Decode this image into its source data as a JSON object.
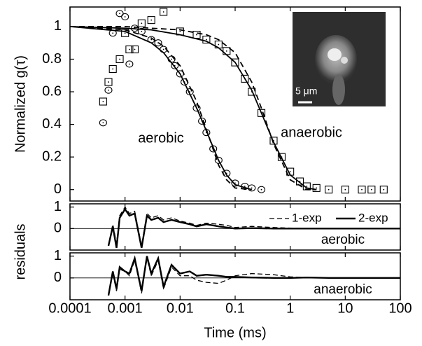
{
  "chart_data": [
    {
      "type": "scatter",
      "ylabel": "Normalized g(τ)",
      "xlog": true,
      "xlim": [
        0.0001,
        100
      ],
      "xticks": [
        0.0001,
        0.001,
        0.01,
        0.1,
        1,
        10,
        100
      ],
      "ylim": [
        -0.07,
        1.12
      ],
      "yticks": [
        0,
        0.2,
        0.4,
        0.6,
        0.8,
        1
      ],
      "inset_scale_label": "5 μm",
      "series": [
        {
          "name": "aerobic",
          "marker": "circle",
          "color": "#000000",
          "x": [
            0.0004,
            0.0005,
            0.0006,
            0.0008,
            0.001,
            0.0012,
            0.0015,
            0.002,
            0.003,
            0.004,
            0.005,
            0.007,
            0.008,
            0.01,
            0.012,
            0.015,
            0.02,
            0.025,
            0.03,
            0.04,
            0.05,
            0.07,
            0.1,
            0.15,
            0.2,
            0.3
          ],
          "values": [
            0.41,
            0.61,
            0.96,
            1.08,
            1.06,
            0.77,
            0.99,
            0.97,
            0.92,
            0.9,
            0.86,
            0.8,
            0.76,
            0.71,
            0.66,
            0.6,
            0.5,
            0.42,
            0.35,
            0.25,
            0.18,
            0.1,
            0.04,
            0.02,
            0.01,
            0
          ]
        },
        {
          "name": "anaerobic",
          "marker": "square",
          "color": "#000000",
          "x": [
            0.0004,
            0.0005,
            0.0006,
            0.0008,
            0.001,
            0.0012,
            0.0015,
            0.002,
            0.003,
            0.005,
            0.01,
            0.02,
            0.03,
            0.05,
            0.07,
            0.1,
            0.15,
            0.2,
            0.3,
            0.5,
            0.7,
            1,
            1.5,
            2,
            3,
            5,
            10,
            20,
            30,
            50
          ],
          "values": [
            0.54,
            0.66,
            0.74,
            0.8,
            0.96,
            0.86,
            0.86,
            1.02,
            1.04,
            1.09,
            0.97,
            0.95,
            0.92,
            0.89,
            0.85,
            0.78,
            0.68,
            0.6,
            0.47,
            0.3,
            0.2,
            0.11,
            0.05,
            0.02,
            0.01,
            0,
            0,
            0,
            0,
            0
          ]
        }
      ],
      "fits": [
        {
          "dash": false,
          "color": "#000000",
          "x": [
            0.0001,
            0.001,
            0.003,
            0.005,
            0.01,
            0.02,
            0.03,
            0.05,
            0.07,
            0.1,
            0.2
          ],
          "values": [
            1,
            0.97,
            0.9,
            0.84,
            0.71,
            0.5,
            0.36,
            0.18,
            0.09,
            0.03,
            0
          ]
        },
        {
          "dash": true,
          "color": "#000000",
          "x": [
            0.0001,
            0.001,
            0.003,
            0.005,
            0.01,
            0.02,
            0.03,
            0.05,
            0.07,
            0.1,
            0.2
          ],
          "values": [
            1,
            0.98,
            0.93,
            0.88,
            0.76,
            0.54,
            0.37,
            0.15,
            0.06,
            0.01,
            0
          ]
        },
        {
          "dash": false,
          "color": "#000000",
          "x": [
            0.0001,
            0.001,
            0.003,
            0.01,
            0.03,
            0.05,
            0.1,
            0.2,
            0.3,
            0.5,
            1,
            2,
            3
          ],
          "values": [
            1,
            0.99,
            0.98,
            0.95,
            0.91,
            0.87,
            0.78,
            0.61,
            0.47,
            0.29,
            0.09,
            0.01,
            0
          ]
        },
        {
          "dash": true,
          "color": "#000000",
          "x": [
            0.0001,
            0.001,
            0.003,
            0.01,
            0.03,
            0.05,
            0.1,
            0.2,
            0.3,
            0.5,
            1,
            2,
            3
          ],
          "values": [
            1,
            1,
            0.99,
            0.98,
            0.95,
            0.92,
            0.84,
            0.66,
            0.5,
            0.28,
            0.06,
            0,
            0
          ]
        }
      ]
    },
    {
      "type": "line",
      "ylabel": "residuals",
      "label": "aerobic",
      "xlog": true,
      "xlim": [
        0.0001,
        100
      ],
      "xticks": [
        0.0001,
        0.001,
        0.01,
        0.1,
        1,
        10,
        100
      ],
      "ylim": [
        -1.0,
        1.15
      ],
      "yticks": [
        0,
        1
      ],
      "x": [
        0.0005,
        0.0006,
        0.0007,
        0.0008,
        0.001,
        0.0012,
        0.0015,
        0.002,
        0.0025,
        0.003,
        0.004,
        0.005,
        0.007,
        0.01,
        0.015,
        0.02,
        0.03,
        0.05,
        0.07,
        0.1,
        0.2,
        0.5,
        1,
        2,
        5,
        10,
        20,
        50,
        100
      ],
      "series": [
        {
          "name": "1-exp",
          "dash": true,
          "color": "#000000",
          "values": [
            -0.8,
            0.2,
            -0.7,
            0.6,
            1,
            0.7,
            0.8,
            -0.8,
            0.7,
            0.5,
            0.6,
            0.4,
            0.5,
            0.35,
            0.25,
            0.15,
            0.25,
            0.2,
            0.15,
            0.05,
            0.1,
            0.05,
            0.02,
            0,
            0,
            0,
            0,
            0,
            0
          ]
        },
        {
          "name": "2-exp",
          "dash": false,
          "color": "#000000",
          "values": [
            -0.8,
            0.1,
            -0.9,
            0.5,
            0.9,
            0.6,
            0.7,
            -0.9,
            0.6,
            0.4,
            0.5,
            0.3,
            0.4,
            0.3,
            0.2,
            0.1,
            0.2,
            0.1,
            0.05,
            0,
            0.02,
            0,
            0,
            0,
            0,
            0,
            0,
            0,
            0
          ]
        }
      ]
    },
    {
      "type": "line",
      "label": "anaerobic",
      "xlabel": "Time (ms)",
      "xlog": true,
      "xlim": [
        0.0001,
        100
      ],
      "xticks": [
        0.0001,
        0.001,
        0.01,
        0.1,
        1,
        10,
        100
      ],
      "ylim": [
        -1.0,
        1.15
      ],
      "yticks": [
        0,
        1
      ],
      "x": [
        0.0005,
        0.0006,
        0.0007,
        0.0008,
        0.001,
        0.0012,
        0.0015,
        0.002,
        0.0025,
        0.003,
        0.004,
        0.005,
        0.007,
        0.01,
        0.015,
        0.02,
        0.03,
        0.05,
        0.07,
        0.1,
        0.2,
        0.5,
        1,
        2,
        5,
        10,
        20,
        50,
        100
      ],
      "series": [
        {
          "dash": true,
          "color": "#000000",
          "values": [
            -0.8,
            0.2,
            -0.6,
            0.4,
            0.3,
            0.1,
            0.8,
            -0.7,
            0.9,
            0.1,
            0.8,
            -0.5,
            0.5,
            0.1,
            0.1,
            -0.1,
            -0.2,
            -0.25,
            -0.1,
            0.1,
            0.2,
            0.15,
            0.05,
            0.02,
            0,
            0,
            0,
            0,
            0
          ]
        },
        {
          "dash": false,
          "color": "#000000",
          "values": [
            -0.8,
            0.3,
            -0.5,
            0.5,
            0.3,
            0.2,
            0.9,
            -0.6,
            1,
            0.2,
            0.9,
            -0.4,
            0.6,
            0.2,
            0.3,
            0.1,
            0.15,
            0.1,
            0.05,
            0.05,
            0.02,
            0,
            0,
            0.02,
            0,
            0,
            0,
            0,
            0
          ]
        }
      ]
    }
  ]
}
